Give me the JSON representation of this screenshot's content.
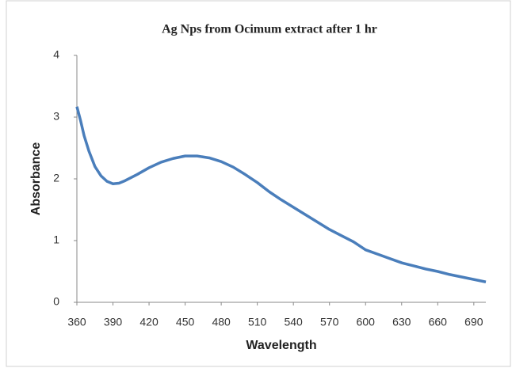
{
  "chart_data": {
    "type": "line",
    "title": "Ag Nps from Ocimum extract after 1 hr",
    "x_label": "Wavelength",
    "y_label": "Absorbance",
    "xlim": [
      360,
      700
    ],
    "ylim": [
      0,
      4
    ],
    "xticks": [
      360,
      390,
      420,
      450,
      480,
      510,
      540,
      570,
      600,
      630,
      660,
      690
    ],
    "yticks": [
      0,
      1,
      2,
      3,
      4
    ],
    "grid": false,
    "series": [
      {
        "name": "Absorbance",
        "color": "#4a7ebb",
        "x": [
          360,
          363,
          366,
          370,
          375,
          380,
          385,
          390,
          395,
          400,
          410,
          420,
          430,
          440,
          450,
          460,
          470,
          480,
          490,
          500,
          510,
          520,
          530,
          540,
          550,
          560,
          570,
          580,
          590,
          600,
          610,
          620,
          630,
          640,
          650,
          660,
          670,
          680,
          690,
          700
        ],
        "values": [
          3.17,
          2.95,
          2.7,
          2.45,
          2.2,
          2.05,
          1.96,
          1.92,
          1.93,
          1.97,
          2.07,
          2.18,
          2.27,
          2.33,
          2.37,
          2.37,
          2.34,
          2.28,
          2.19,
          2.07,
          1.94,
          1.79,
          1.66,
          1.54,
          1.42,
          1.3,
          1.18,
          1.08,
          0.98,
          0.85,
          0.78,
          0.71,
          0.64,
          0.59,
          0.54,
          0.5,
          0.45,
          0.41,
          0.37,
          0.33
        ]
      }
    ]
  }
}
